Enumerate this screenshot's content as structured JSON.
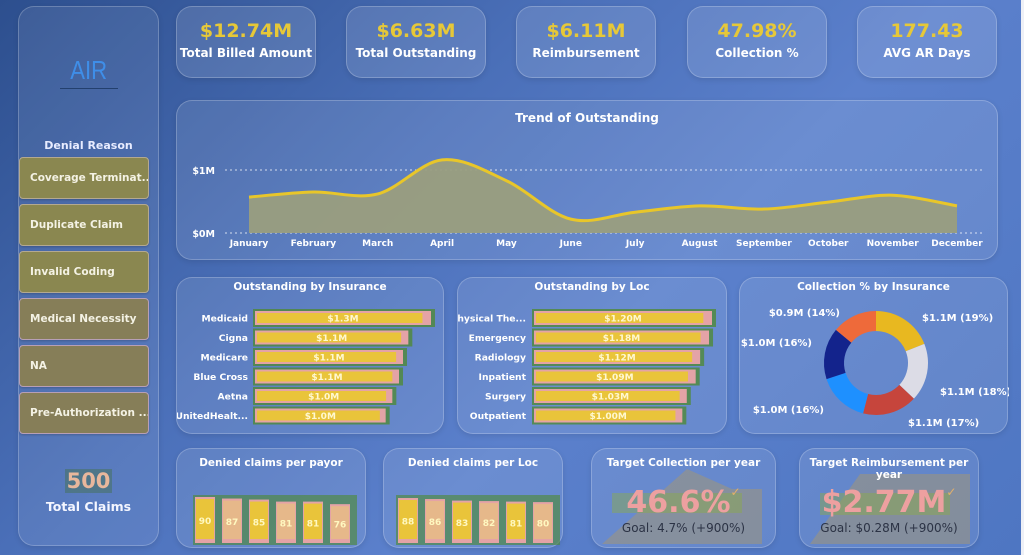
{
  "sidebar": {
    "logo": "AIR",
    "slicer_title": "Denial Reason",
    "slicer_items": [
      "Coverage Terminat...",
      "Duplicate Claim",
      "Invalid Coding",
      "Medical Necessity",
      "NA",
      "Pre-Authorization ..."
    ],
    "total_claims": {
      "value": "500",
      "label": "Total Claims"
    }
  },
  "kpis": [
    {
      "value": "$12.74M",
      "label": "Total Billed Amount"
    },
    {
      "value": "$6.63M",
      "label": "Total Outstanding"
    },
    {
      "value": "$6.11M",
      "label": "Reimbursement"
    },
    {
      "value": "47.98%",
      "label": "Collection %"
    },
    {
      "value": "177.43",
      "label": "AVG AR Days"
    }
  ],
  "colors": {
    "kpi_value": "#e6c838",
    "trend_line": "#e8c62a",
    "trend_fill": "#9a9e7e",
    "bar_fill": "#e9c43a",
    "bar_pink": "#e4a3a6",
    "bar_green": "#4d8a2e"
  },
  "chart_data": [
    {
      "type": "area",
      "title": "Trend of Outstanding",
      "x": [
        "January",
        "February",
        "March",
        "April",
        "May",
        "June",
        "July",
        "August",
        "September",
        "October",
        "November",
        "December"
      ],
      "values": [
        0.57,
        0.65,
        0.62,
        1.16,
        0.83,
        0.22,
        0.33,
        0.43,
        0.38,
        0.49,
        0.6,
        0.43
      ],
      "unit": "$M",
      "ytick_labels": [
        "$0M",
        "$1M"
      ],
      "yticks": [
        0,
        1
      ],
      "ylim": [
        0,
        1.3
      ],
      "grid": true
    },
    {
      "type": "bar",
      "orientation": "horizontal",
      "title": "Outstanding by Insurance",
      "categories": [
        "Medicaid",
        "Cigna",
        "Medicare",
        "Blue Cross",
        "Aetna",
        "UnitedHealt..."
      ],
      "values": [
        1.32,
        1.15,
        1.11,
        1.08,
        1.03,
        0.98
      ],
      "data_labels": [
        "$1.3M",
        "$1.1M",
        "$1.1M",
        "$1.1M",
        "$1.0M",
        "$1.0M"
      ],
      "unit": "$M"
    },
    {
      "type": "bar",
      "orientation": "horizontal",
      "title": "Outstanding by Loc",
      "categories": [
        "Physical The...",
        "Emergency",
        "Radiology",
        "Inpatient",
        "Surgery",
        "Outpatient"
      ],
      "values": [
        1.2,
        1.18,
        1.12,
        1.09,
        1.03,
        1.0
      ],
      "data_labels": [
        "$1.20M",
        "$1.18M",
        "$1.12M",
        "$1.09M",
        "$1.03M",
        "$1.00M"
      ],
      "unit": "$M"
    },
    {
      "type": "pie",
      "subtype": "donut",
      "title": "Collection % by Insurance",
      "slices": [
        {
          "label": "$1.1M (19%)",
          "value": 19,
          "color": "#e8b820"
        },
        {
          "label": "$1.1M (18%)",
          "value": 18,
          "color": "#dcdce6"
        },
        {
          "label": "$1.1M (17%)",
          "value": 17,
          "color": "#c6453c"
        },
        {
          "label": "$1.0M (16%)",
          "value": 16,
          "color": "#1e90ff"
        },
        {
          "label": "$1.0M (16%)",
          "value": 16,
          "color": "#13238c"
        },
        {
          "label": "$0.9M (14%)",
          "value": 14,
          "color": "#ee6a3a"
        }
      ]
    },
    {
      "type": "bar",
      "title": "Denied claims per payor",
      "categories": [
        "",
        "",
        "",
        "",
        "",
        ""
      ],
      "values": [
        90,
        87,
        85,
        81,
        81,
        76
      ],
      "data_labels": [
        "90",
        "87",
        "85",
        "81",
        "81",
        "76"
      ]
    },
    {
      "type": "bar",
      "title": "Denied claims per Loc",
      "categories": [
        "",
        "",
        "",
        "",
        "",
        ""
      ],
      "values": [
        88,
        86,
        83,
        82,
        81,
        80
      ],
      "data_labels": [
        "88",
        "86",
        "83",
        "82",
        "81",
        "80"
      ]
    }
  ],
  "targets": [
    {
      "title": "Target Collection per year",
      "value": "46.6%",
      "goal": "Goal: 4.7% (+900%)",
      "check": "✓"
    },
    {
      "title": "Target Reimbursement per year",
      "value": "$2.77M",
      "goal": "Goal: $0.28M (+900%)",
      "check": "✓"
    }
  ]
}
